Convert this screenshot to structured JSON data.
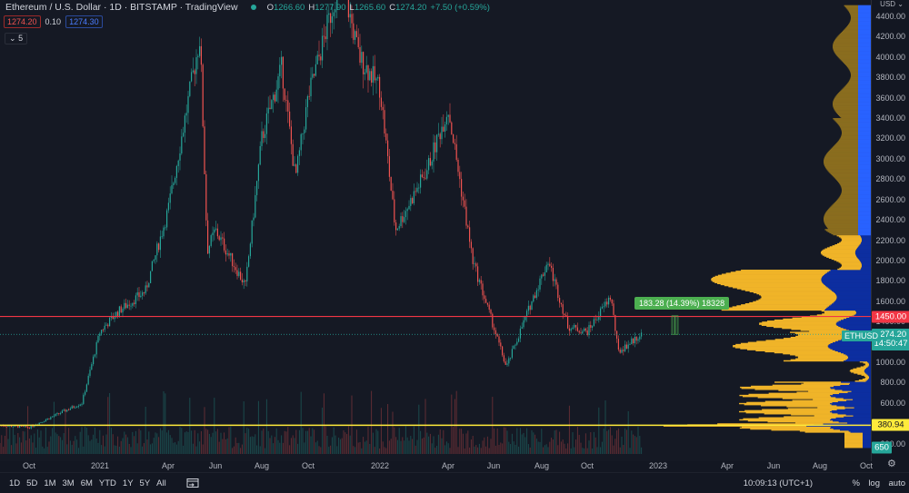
{
  "header": {
    "symbol_title": "Ethereum / U.S. Dollar · 1D · BITSTAMP · TradingView",
    "market_status_color": "#26a69a",
    "ohlc": [
      {
        "key": "O",
        "value": "1266.60"
      },
      {
        "key": "H",
        "value": "1277.90"
      },
      {
        "key": "L",
        "value": "1265.60"
      },
      {
        "key": "C",
        "value": "1274.20"
      }
    ],
    "change": "+7.50 (+0.59%)",
    "sell_price": "1274.20",
    "spread": "0.10",
    "buy_price": "1274.30",
    "indicators_collapsed": "5"
  },
  "price_axis": {
    "currency": "USD",
    "ticks": [
      "4400.00",
      "4200.00",
      "4000.00",
      "3800.00",
      "3600.00",
      "3400.00",
      "3200.00",
      "3000.00",
      "2800.00",
      "2600.00",
      "2400.00",
      "2200.00",
      "2000.00",
      "1800.00",
      "1600.00",
      "1400.00",
      "1000.00",
      "800.00",
      "600.00",
      "200.00"
    ],
    "labels": {
      "resistance": "1450.00",
      "symbol_tag": "ETHUSD",
      "last_price": "1274.20",
      "countdown": "14:50:47",
      "support": "380.94",
      "volume": "650"
    }
  },
  "time_axis": {
    "ticks": [
      "Oct",
      "2021",
      "Apr",
      "Jun",
      "Aug",
      "Oct",
      "2022",
      "Apr",
      "Jun",
      "Aug",
      "Oct",
      "2023",
      "Apr",
      "Jun",
      "Aug",
      "Oct"
    ]
  },
  "measure_tool": {
    "label": "183.28 (14.39%) 18328"
  },
  "bottom_bar": {
    "ranges": [
      "1D",
      "5D",
      "1M",
      "3M",
      "6M",
      "YTD",
      "1Y",
      "5Y",
      "All"
    ],
    "clock": "10:09:13 (UTC+1)",
    "percent": "%",
    "log": "log",
    "auto": "auto"
  },
  "colors": {
    "background": "#131722",
    "up": "#26a69a",
    "down": "#ef5350",
    "resistance_line": "#f23645",
    "support_line": "#ffeb3b",
    "vp_up": "#2962ff",
    "vp_down": "#f0b429",
    "vp_up_va": "#0d2ea0",
    "vp_down_outer": "#8a6d1f",
    "measure": "#4caf50"
  },
  "chart_data": {
    "type": "candlestick",
    "title": "Ethereum / U.S. Dollar · 1D · BITSTAMP",
    "xlabel": "",
    "ylabel": "USD",
    "ylim": [
      150,
      4550
    ],
    "x_ticks": [
      "Oct 2020",
      "2021",
      "Apr 2021",
      "Jun 2021",
      "Aug 2021",
      "Oct 2021",
      "2022",
      "Apr 2022",
      "Jun 2022",
      "Aug 2022",
      "Oct 2022",
      "2023",
      "Apr 2023",
      "Jun 2023",
      "Aug 2023",
      "Oct 2023"
    ],
    "approx_close_path": {
      "x": [
        "2020-08",
        "2020-10",
        "2020-12",
        "2021-01",
        "2021-02",
        "2021-03",
        "2021-04",
        "2021-05-12",
        "2021-05-23",
        "2021-06",
        "2021-07-20",
        "2021-08",
        "2021-09-07",
        "2021-09-21",
        "2021-10",
        "2021-11-10",
        "2021-12",
        "2022-01-01",
        "2022-01-24",
        "2022-03-01",
        "2022-04-03",
        "2022-05",
        "2022-06-18",
        "2022-07",
        "2022-08-14",
        "2022-09",
        "2022-10",
        "2022-11-05",
        "2022-11-10",
        "2022-11-28"
      ],
      "y": [
        380,
        360,
        600,
        1300,
        1500,
        1700,
        2500,
        4200,
        2100,
        2300,
        1750,
        3200,
        3900,
        2800,
        3600,
        4800,
        4000,
        3700,
        2300,
        2900,
        3500,
        2000,
        950,
        1600,
        2000,
        1350,
        1300,
        1650,
        1100,
        1274
      ]
    },
    "horizontal_lines": [
      {
        "name": "resistance",
        "value": 1450.0,
        "color": "#f23645"
      },
      {
        "name": "support",
        "value": 380.94,
        "color": "#ffeb3b"
      },
      {
        "name": "last_price",
        "value": 1274.2,
        "style": "dotted"
      }
    ],
    "measurement": {
      "change": 183.28,
      "percent": 14.39,
      "ticks": 18328
    },
    "volume_profile": "right-aligned, high-volume nodes near 1000-1800 and 300-600",
    "last": {
      "open": 1266.6,
      "high": 1277.9,
      "low": 1265.6,
      "close": 1274.2,
      "change": 7.5,
      "change_pct": 0.59
    }
  }
}
